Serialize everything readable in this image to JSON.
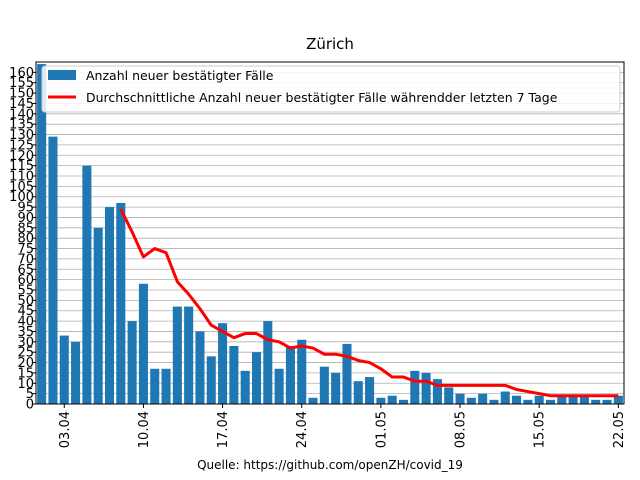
{
  "chart_data": {
    "type": "bar",
    "title": "Zürich",
    "source": "Quelle: https://github.com/openZH/covid_19",
    "xlabel": "",
    "ylabel": "",
    "ylim": [
      0,
      165
    ],
    "y_tick_step": 5,
    "grid": "horizontal",
    "legend_position": "top",
    "categories": [
      "01.04",
      "02.04",
      "03.04",
      "04.04",
      "05.04",
      "06.04",
      "07.04",
      "08.04",
      "09.04",
      "10.04",
      "11.04",
      "12.04",
      "13.04",
      "14.04",
      "15.04",
      "16.04",
      "17.04",
      "18.04",
      "19.04",
      "20.04",
      "21.04",
      "22.04",
      "23.04",
      "24.04",
      "25.04",
      "26.04",
      "27.04",
      "28.04",
      "29.04",
      "30.04",
      "01.05",
      "02.05",
      "03.05",
      "04.05",
      "05.05",
      "06.05",
      "07.05",
      "08.05",
      "09.05",
      "10.05",
      "11.05",
      "12.05",
      "13.05",
      "14.05",
      "15.05",
      "16.05",
      "17.05",
      "18.05",
      "19.05",
      "20.05",
      "21.05",
      "22.05"
    ],
    "x_tick_labels": [
      "03.04",
      "10.04",
      "17.04",
      "24.04",
      "01.05",
      "08.05",
      "15.05",
      "22.05"
    ],
    "series": [
      {
        "name": "Anzahl neuer bestätigter Fälle",
        "type": "bar",
        "color": "#1f77b4",
        "values": [
          164,
          129,
          33,
          30,
          115,
          85,
          95,
          97,
          40,
          58,
          17,
          17,
          47,
          47,
          35,
          23,
          39,
          28,
          16,
          25,
          40,
          17,
          28,
          31,
          3,
          18,
          15,
          29,
          11,
          13,
          3,
          4,
          2,
          16,
          15,
          12,
          8,
          5,
          3,
          5,
          2,
          6,
          4,
          2,
          4,
          2,
          4,
          4,
          4,
          2,
          2,
          4
        ]
      },
      {
        "name": "Durchschnittliche Anzahl neuer bestätigter Fälle währendder letzten 7 Tage",
        "type": "line",
        "color": "#ff0000",
        "values": [
          null,
          null,
          null,
          null,
          null,
          null,
          null,
          94,
          83,
          71,
          75,
          73,
          59,
          53,
          46,
          38,
          35,
          32,
          34,
          34,
          31,
          30,
          27,
          28,
          27,
          24,
          24,
          23,
          21,
          20,
          17,
          13,
          13,
          11,
          11,
          9,
          9,
          9,
          9,
          9,
          9,
          9,
          7,
          6,
          5,
          4,
          4,
          4,
          4,
          4,
          4,
          4
        ]
      }
    ]
  }
}
